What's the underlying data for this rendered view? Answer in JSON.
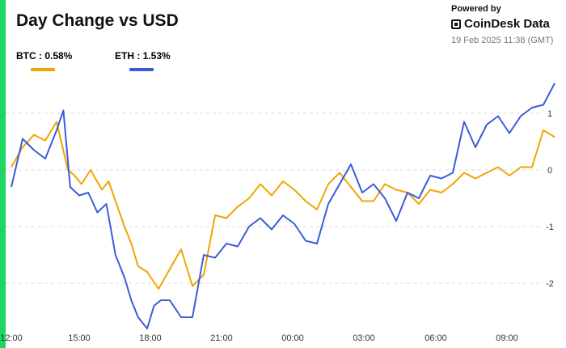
{
  "header": {
    "title": "Day Change vs USD",
    "powered_by": "Powered by",
    "brand": "CoinDesk Data",
    "brand_icon": "coindesk-logo-icon",
    "timestamp": "19 Feb 2025 11:38 (GMT)"
  },
  "colors": {
    "accent": "#1ed760",
    "btc": "#f0a500",
    "eth": "#3b5bdb",
    "grid": "#d9d9d9"
  },
  "chart_data": {
    "type": "line",
    "title": "Day Change vs USD",
    "xlabel": "",
    "ylabel": "",
    "x_ticks": [
      "12:00",
      "15:00",
      "18:00",
      "21:00",
      "00:00",
      "03:00",
      "06:00",
      "09:00"
    ],
    "y_ticks": [
      "1",
      "0",
      "-1",
      "-2"
    ],
    "y_tick_values": [
      1,
      0,
      -1,
      -2
    ],
    "ylim": [
      -2.95,
      1.6
    ],
    "xlim": [
      0,
      24
    ],
    "grid": "horizontal-dashed",
    "legend_placement": "top-left",
    "series": [
      {
        "name": "BTC",
        "legend_label": "BTC : 0.58%",
        "color": "#f0a500",
        "x": [
          0,
          0.5,
          1,
          1.5,
          2,
          2.5,
          2.8,
          3.1,
          3.5,
          4,
          4.3,
          4.6,
          5,
          5.3,
          5.6,
          6,
          6.5,
          7,
          7.5,
          8,
          8.5,
          9,
          9.5,
          10,
          10.5,
          11,
          11.5,
          12,
          12.5,
          13,
          13.5,
          14,
          14.5,
          15,
          15.5,
          16,
          16.5,
          17,
          17.5,
          18,
          18.5,
          19,
          19.5,
          20,
          20.5,
          21,
          21.5,
          22,
          22.5,
          23,
          23.5,
          24
        ],
        "y": [
          0.05,
          0.4,
          0.62,
          0.52,
          0.85,
          0.0,
          -0.1,
          -0.25,
          0.0,
          -0.35,
          -0.2,
          -0.55,
          -1.0,
          -1.3,
          -1.7,
          -1.8,
          -2.1,
          -1.75,
          -1.4,
          -2.05,
          -1.85,
          -0.8,
          -0.85,
          -0.65,
          -0.5,
          -0.25,
          -0.45,
          -0.2,
          -0.35,
          -0.55,
          -0.7,
          -0.25,
          -0.05,
          -0.3,
          -0.55,
          -0.55,
          -0.25,
          -0.35,
          -0.4,
          -0.6,
          -0.35,
          -0.4,
          -0.25,
          -0.05,
          -0.15,
          -0.05,
          0.05,
          -0.1,
          0.05,
          0.05,
          0.7,
          0.58
        ]
      },
      {
        "name": "ETH",
        "legend_label": "ETH : 1.53%",
        "color": "#3b5bdb",
        "x": [
          0,
          0.5,
          1,
          1.5,
          2,
          2.3,
          2.6,
          3,
          3.4,
          3.8,
          4.2,
          4.6,
          5,
          5.3,
          5.6,
          6,
          6.3,
          6.6,
          7,
          7.5,
          8,
          8.5,
          9,
          9.5,
          10,
          10.5,
          11,
          11.5,
          12,
          12.5,
          13,
          13.5,
          14,
          14.5,
          15,
          15.5,
          16,
          16.5,
          17,
          17.5,
          18,
          18.5,
          19,
          19.5,
          20,
          20.5,
          21,
          21.5,
          22,
          22.5,
          23,
          23.5,
          24
        ],
        "y": [
          -0.3,
          0.55,
          0.35,
          0.2,
          0.7,
          1.05,
          -0.3,
          -0.45,
          -0.4,
          -0.75,
          -0.6,
          -1.5,
          -1.9,
          -2.3,
          -2.6,
          -2.8,
          -2.4,
          -2.3,
          -2.3,
          -2.6,
          -2.6,
          -1.5,
          -1.55,
          -1.3,
          -1.35,
          -1.0,
          -0.85,
          -1.05,
          -0.8,
          -0.95,
          -1.25,
          -1.3,
          -0.6,
          -0.25,
          0.1,
          -0.4,
          -0.25,
          -0.5,
          -0.9,
          -0.4,
          -0.5,
          -0.1,
          -0.15,
          -0.05,
          0.85,
          0.4,
          0.8,
          0.95,
          0.65,
          0.95,
          1.1,
          1.15,
          1.53
        ]
      }
    ]
  }
}
